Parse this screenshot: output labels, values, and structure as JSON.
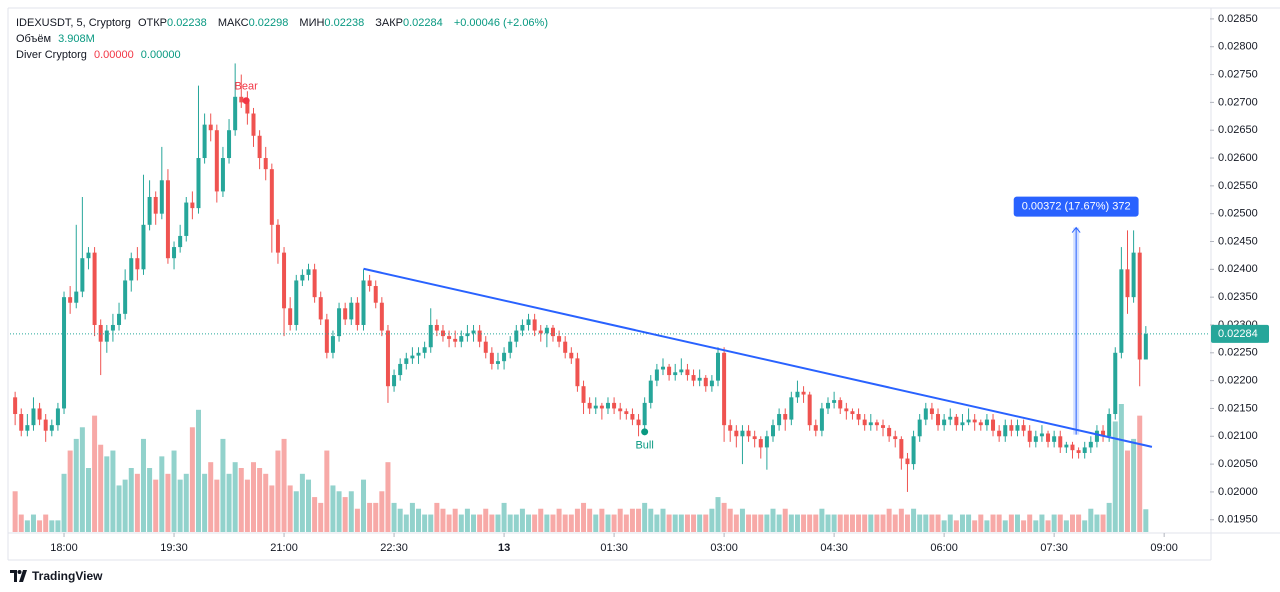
{
  "chart_data": {
    "type": "candlestick",
    "header": {
      "symbol": "IDEXUSDT, 5, Cryptorg",
      "items": [
        {
          "label": "ОТКР",
          "value": "0.02238"
        },
        {
          "label": "МАКС",
          "value": "0.02298"
        },
        {
          "label": "МИН",
          "value": "0.02238"
        },
        {
          "label": "ЗАКР",
          "value": "0.02284"
        }
      ],
      "change": "+0.00046 (+2.06%)",
      "volume_title": "Объём",
      "volume_value": "3.908M",
      "indicator": "Diver Cryptorg",
      "indicator_values": [
        "0.00000",
        "0.00000"
      ]
    },
    "up_color": "#26a69a",
    "down_color": "#ef5350",
    "series": [
      {
        "open": [
          0.0217,
          0.0214,
          0.0211,
          0.0212,
          0.0215,
          0.0213,
          0.0211,
          0.0212,
          0.0215,
          0.0235,
          0.0234,
          0.0236,
          0.0242,
          0.0243,
          0.023,
          0.0227,
          0.0229,
          0.023,
          0.0232,
          0.0238,
          0.0242,
          0.024,
          0.0248,
          0.0253,
          0.025,
          0.0256,
          0.0242,
          0.0244,
          0.0246,
          0.0252,
          0.0251,
          0.026,
          0.0266,
          0.0265,
          0.0254,
          0.026,
          0.0265,
          0.0271,
          0.027,
          0.0268,
          0.0264,
          0.026,
          0.0258,
          0.0248,
          0.0243,
          0.0233,
          0.023,
          0.0238,
          0.0239,
          0.024,
          0.0235,
          0.0231,
          0.0225,
          0.0228,
          0.0233,
          0.0231,
          0.0234,
          0.023,
          0.0238,
          0.0237,
          0.0234,
          0.0229,
          0.0219,
          0.0221,
          0.0223,
          0.0224,
          0.02245,
          0.0225,
          0.0226,
          0.023,
          0.0229,
          0.0228,
          0.02275,
          0.0227,
          0.0228,
          0.02285,
          0.0229,
          0.0227,
          0.0225,
          0.0223,
          0.02235,
          0.0225,
          0.0227,
          0.0229,
          0.023,
          0.0231,
          0.0229,
          0.02285,
          0.02295,
          0.0228,
          0.0227,
          0.0225,
          0.0224,
          0.0219,
          0.0216,
          0.0215,
          0.02155,
          0.0215,
          0.0216,
          0.0215,
          0.02145,
          0.0214,
          0.0213,
          0.0212,
          0.0216,
          0.022,
          0.0222,
          0.02225,
          0.0221,
          0.02215,
          0.0222,
          0.0221,
          0.022,
          0.02205,
          0.0219,
          0.022,
          0.0225,
          0.0212,
          0.0211,
          0.021,
          0.0211,
          0.021,
          0.02095,
          0.0208,
          0.021,
          0.0212,
          0.0214,
          0.0213,
          0.0217,
          0.0218,
          0.02175,
          0.0212,
          0.0211,
          0.0215,
          0.0216,
          0.02165,
          0.0215,
          0.02145,
          0.0214,
          0.0213,
          0.0212,
          0.02125,
          0.0212,
          0.02115,
          0.021,
          0.02095,
          0.0206,
          0.0205,
          0.021,
          0.0213,
          0.0215,
          0.0214,
          0.0212,
          0.0213,
          0.02135,
          0.0212,
          0.02125,
          0.0213,
          0.02125,
          0.0212,
          0.0213,
          0.0211,
          0.021,
          0.0212,
          0.0211,
          0.0212,
          0.0211,
          0.0209,
          0.021,
          0.02105,
          0.0209,
          0.021,
          0.0208,
          0.02085,
          0.02075,
          0.0207,
          0.0208,
          0.0209,
          0.0211,
          0.021,
          0.0214,
          0.0225,
          0.024,
          0.0235,
          0.0243,
          0.02238
        ],
        "high": [
          0.0218,
          0.0215,
          0.0214,
          0.0217,
          0.0216,
          0.0214,
          0.0213,
          0.0216,
          0.0236,
          0.0237,
          0.0248,
          0.0253,
          0.0244,
          0.0244,
          0.0231,
          0.023,
          0.0232,
          0.0234,
          0.024,
          0.0243,
          0.0244,
          0.0257,
          0.0256,
          0.0254,
          0.0262,
          0.0258,
          0.0245,
          0.0248,
          0.0253,
          0.0254,
          0.0273,
          0.0268,
          0.0268,
          0.0266,
          0.0262,
          0.0267,
          0.0277,
          0.0275,
          0.0272,
          0.0269,
          0.0265,
          0.0262,
          0.0259,
          0.0249,
          0.0244,
          0.0235,
          0.0239,
          0.024,
          0.0241,
          0.0241,
          0.0236,
          0.0232,
          0.0229,
          0.0234,
          0.0234,
          0.0235,
          0.0235,
          0.024,
          0.0239,
          0.0238,
          0.0235,
          0.023,
          0.0222,
          0.0224,
          0.0225,
          0.0226,
          0.0226,
          0.0227,
          0.0233,
          0.0231,
          0.023,
          0.0229,
          0.0229,
          0.0229,
          0.023,
          0.023,
          0.023,
          0.0228,
          0.0226,
          0.0225,
          0.0226,
          0.0228,
          0.023,
          0.0231,
          0.0232,
          0.0232,
          0.023,
          0.023,
          0.023,
          0.0229,
          0.0228,
          0.0226,
          0.0225,
          0.022,
          0.0217,
          0.0217,
          0.0216,
          0.0217,
          0.0217,
          0.0216,
          0.0215,
          0.0215,
          0.0214,
          0.0217,
          0.0221,
          0.0223,
          0.0224,
          0.0223,
          0.0223,
          0.0224,
          0.0223,
          0.0222,
          0.0222,
          0.0221,
          0.0221,
          0.0226,
          0.0226,
          0.0213,
          0.0212,
          0.0212,
          0.0212,
          0.0211,
          0.021,
          0.0211,
          0.0213,
          0.0215,
          0.0215,
          0.0218,
          0.022,
          0.0219,
          0.0218,
          0.0213,
          0.0216,
          0.0217,
          0.0218,
          0.0217,
          0.0216,
          0.0215,
          0.0215,
          0.0214,
          0.0214,
          0.0213,
          0.0213,
          0.0212,
          0.0211,
          0.021,
          0.0207,
          0.0211,
          0.0214,
          0.0216,
          0.0216,
          0.0215,
          0.0214,
          0.0215,
          0.0214,
          0.0214,
          0.0215,
          0.0214,
          0.0213,
          0.0214,
          0.0214,
          0.0212,
          0.0213,
          0.0213,
          0.0213,
          0.0213,
          0.0212,
          0.0211,
          0.0212,
          0.0211,
          0.0211,
          0.0211,
          0.0209,
          0.0209,
          0.0208,
          0.0209,
          0.021,
          0.0212,
          0.0212,
          0.0215,
          0.0226,
          0.0244,
          0.0247,
          0.0247,
          0.0244,
          0.02298
        ],
        "low": [
          0.0212,
          0.021,
          0.021,
          0.0211,
          0.0212,
          0.0209,
          0.021,
          0.0211,
          0.0214,
          0.0232,
          0.0233,
          0.0235,
          0.024,
          0.0228,
          0.0221,
          0.0225,
          0.0227,
          0.0229,
          0.0231,
          0.0236,
          0.0238,
          0.0239,
          0.0247,
          0.0248,
          0.0249,
          0.0241,
          0.024,
          0.0243,
          0.0245,
          0.0249,
          0.025,
          0.0259,
          0.0263,
          0.0252,
          0.0253,
          0.0259,
          0.0264,
          0.0269,
          0.0266,
          0.0262,
          0.0258,
          0.0256,
          0.0243,
          0.0241,
          0.0228,
          0.0229,
          0.0229,
          0.0237,
          0.0238,
          0.0234,
          0.023,
          0.0224,
          0.0224,
          0.0227,
          0.023,
          0.023,
          0.0229,
          0.0229,
          0.0236,
          0.0233,
          0.0228,
          0.0216,
          0.0218,
          0.022,
          0.0222,
          0.0223,
          0.0223,
          0.0224,
          0.0225,
          0.0228,
          0.0227,
          0.0226,
          0.0226,
          0.0226,
          0.0227,
          0.0227,
          0.0226,
          0.0224,
          0.0222,
          0.0222,
          0.0222,
          0.0224,
          0.0226,
          0.0228,
          0.0229,
          0.0228,
          0.0227,
          0.0226,
          0.0227,
          0.0226,
          0.0224,
          0.0223,
          0.0218,
          0.0214,
          0.0214,
          0.0214,
          0.0213,
          0.0214,
          0.0214,
          0.0213,
          0.0213,
          0.0212,
          0.021,
          0.0211,
          0.0215,
          0.0219,
          0.0221,
          0.022,
          0.022,
          0.0221,
          0.022,
          0.0219,
          0.0219,
          0.0218,
          0.0218,
          0.0219,
          0.0209,
          0.0209,
          0.0208,
          0.0205,
          0.0209,
          0.0208,
          0.0206,
          0.0204,
          0.0209,
          0.0211,
          0.0211,
          0.0212,
          0.0216,
          0.0216,
          0.0211,
          0.021,
          0.021,
          0.0214,
          0.0215,
          0.0214,
          0.0213,
          0.0213,
          0.0212,
          0.0211,
          0.0211,
          0.0211,
          0.021,
          0.0209,
          0.0208,
          0.0204,
          0.02,
          0.0204,
          0.0209,
          0.0212,
          0.0213,
          0.0211,
          0.0211,
          0.0212,
          0.0211,
          0.0211,
          0.0212,
          0.0211,
          0.0211,
          0.0211,
          0.021,
          0.0209,
          0.0209,
          0.021,
          0.021,
          0.021,
          0.0208,
          0.0208,
          0.0209,
          0.0208,
          0.0208,
          0.0207,
          0.0207,
          0.0206,
          0.0206,
          0.0206,
          0.0207,
          0.0208,
          0.0209,
          0.0209,
          0.0213,
          0.0224,
          0.0232,
          0.0234,
          0.0219,
          0.02238
        ],
        "close": [
          0.0214,
          0.0211,
          0.0212,
          0.0215,
          0.0213,
          0.0211,
          0.0212,
          0.0215,
          0.0235,
          0.0234,
          0.0236,
          0.0242,
          0.0243,
          0.023,
          0.0227,
          0.0229,
          0.023,
          0.0232,
          0.0238,
          0.0242,
          0.024,
          0.0248,
          0.0253,
          0.025,
          0.0256,
          0.0242,
          0.0244,
          0.0246,
          0.0252,
          0.0251,
          0.026,
          0.0266,
          0.0265,
          0.0254,
          0.026,
          0.0265,
          0.0271,
          0.027,
          0.0268,
          0.0264,
          0.026,
          0.0258,
          0.0248,
          0.0243,
          0.0233,
          0.023,
          0.0238,
          0.0239,
          0.024,
          0.0235,
          0.0231,
          0.0225,
          0.0228,
          0.0233,
          0.0231,
          0.0234,
          0.023,
          0.0238,
          0.0237,
          0.0234,
          0.0229,
          0.0219,
          0.0221,
          0.0223,
          0.0224,
          0.02245,
          0.0225,
          0.0226,
          0.023,
          0.0229,
          0.0228,
          0.02275,
          0.0227,
          0.0228,
          0.02285,
          0.0229,
          0.0227,
          0.0225,
          0.0223,
          0.02235,
          0.0225,
          0.0227,
          0.0229,
          0.023,
          0.0231,
          0.0229,
          0.02285,
          0.02295,
          0.0228,
          0.0227,
          0.0225,
          0.0224,
          0.0219,
          0.0216,
          0.0215,
          0.02155,
          0.0215,
          0.0216,
          0.0215,
          0.02145,
          0.0214,
          0.0213,
          0.0212,
          0.0216,
          0.022,
          0.0222,
          0.02225,
          0.0221,
          0.02215,
          0.0222,
          0.0221,
          0.022,
          0.02205,
          0.0219,
          0.022,
          0.0225,
          0.0212,
          0.0211,
          0.021,
          0.0211,
          0.021,
          0.02095,
          0.0208,
          0.021,
          0.0212,
          0.0214,
          0.0213,
          0.0217,
          0.0218,
          0.02175,
          0.0212,
          0.0211,
          0.0215,
          0.0216,
          0.02165,
          0.0215,
          0.02145,
          0.0214,
          0.0213,
          0.0212,
          0.02125,
          0.0212,
          0.02115,
          0.021,
          0.02095,
          0.0206,
          0.0205,
          0.021,
          0.0213,
          0.0215,
          0.0214,
          0.0212,
          0.0213,
          0.02135,
          0.0212,
          0.02125,
          0.0213,
          0.02125,
          0.0212,
          0.0213,
          0.0211,
          0.021,
          0.0212,
          0.0211,
          0.0212,
          0.0211,
          0.0209,
          0.021,
          0.02105,
          0.0209,
          0.021,
          0.0208,
          0.02085,
          0.02075,
          0.0207,
          0.0208,
          0.0209,
          0.0211,
          0.021,
          0.0214,
          0.0225,
          0.024,
          0.0235,
          0.0243,
          0.02238,
          0.02284
        ],
        "volume": [
          7,
          3,
          2,
          3,
          2,
          3,
          2,
          2,
          10,
          14,
          16,
          18,
          11,
          20,
          15,
          13,
          14,
          8,
          9,
          11,
          10,
          16,
          11,
          9,
          13,
          10,
          14,
          9,
          10,
          18,
          21,
          10,
          12,
          9,
          16,
          10,
          12,
          11,
          9,
          12,
          11,
          10,
          8,
          14,
          16,
          8,
          7,
          10,
          9,
          6,
          5,
          14,
          8,
          7,
          6,
          7,
          4,
          9,
          5,
          5,
          7,
          12,
          5,
          4,
          3,
          5,
          4,
          3,
          3,
          5,
          4,
          3,
          4,
          3,
          4,
          3,
          3,
          4,
          3,
          3,
          5,
          3,
          3,
          4,
          3,
          3,
          4,
          3,
          3,
          4,
          3,
          3,
          4,
          5,
          4,
          3,
          4,
          3,
          3,
          4,
          3,
          4,
          4,
          5,
          4,
          3,
          4,
          3,
          3,
          3,
          3,
          3,
          3,
          3,
          4,
          6,
          5,
          4,
          3,
          4,
          3,
          3,
          3,
          3,
          4,
          3,
          4,
          3,
          3,
          3,
          3,
          3,
          4,
          3,
          3,
          3,
          3,
          3,
          3,
          3,
          3,
          3,
          3,
          4,
          3,
          4,
          3,
          4,
          3,
          3,
          3,
          3,
          2,
          3,
          2,
          3,
          3,
          2,
          3,
          2,
          3,
          3,
          2,
          3,
          3,
          2,
          3,
          2,
          3,
          2,
          3,
          3,
          2,
          3,
          3,
          2,
          4,
          3,
          3,
          5,
          19,
          22,
          14,
          16,
          20,
          3.908
        ]
      }
    ],
    "xlim": [
      -0.84,
      195.5
    ],
    "xticks": [
      {
        "value": 8,
        "label": "18:00"
      },
      {
        "value": 26,
        "label": "19:30"
      },
      {
        "value": 44,
        "label": "21:00"
      },
      {
        "value": 62,
        "label": "22:30"
      },
      {
        "value": 80,
        "label": "13"
      },
      {
        "value": 98,
        "label": "01:30"
      },
      {
        "value": 116,
        "label": "03:00"
      },
      {
        "value": 134,
        "label": "04:30"
      },
      {
        "value": 152,
        "label": "06:00"
      },
      {
        "value": 170,
        "label": "07:30"
      },
      {
        "value": 188,
        "label": "09:00"
      }
    ],
    "ylim": [
      0.01928,
      0.02866
    ],
    "yticks": [
      {
        "value": 0.0285,
        "label": "0.02850"
      },
      {
        "value": 0.028,
        "label": "0.02800"
      },
      {
        "value": 0.0275,
        "label": "0.02750"
      },
      {
        "value": 0.027,
        "label": "0.02700"
      },
      {
        "value": 0.0265,
        "label": "0.02650"
      },
      {
        "value": 0.026,
        "label": "0.02600"
      },
      {
        "value": 0.0255,
        "label": "0.02550"
      },
      {
        "value": 0.025,
        "label": "0.02500"
      },
      {
        "value": 0.0245,
        "label": "0.02450"
      },
      {
        "value": 0.024,
        "label": "0.02400"
      },
      {
        "value": 0.0235,
        "label": "0.02350"
      },
      {
        "value": 0.023,
        "label": "0.02300"
      },
      {
        "value": 0.0225,
        "label": "0.02250"
      },
      {
        "value": 0.022,
        "label": "0.02200"
      },
      {
        "value": 0.0215,
        "label": "0.02150"
      },
      {
        "value": 0.021,
        "label": "0.02100"
      },
      {
        "value": 0.0205,
        "label": "0.02050"
      },
      {
        "value": 0.02,
        "label": "0.02000"
      },
      {
        "value": 0.0195,
        "label": "0.01950"
      }
    ],
    "grid": false,
    "trendline": {
      "x": [
        57,
        186
      ],
      "y": [
        0.02401,
        0.02081
      ],
      "color": "#2962ff"
    },
    "measure": {
      "x": 173.6,
      "y": [
        0.02103,
        0.02475
      ],
      "label": "0.00372 (17.67%) 372",
      "color": "#2962ff"
    },
    "markers": [
      {
        "label": "Bear",
        "x": 37.8,
        "y": 0.02703,
        "color": "#f23645",
        "placement": "above"
      },
      {
        "label": "Bull",
        "x": 103,
        "y": 0.02108,
        "color": "#089981",
        "placement": "below"
      }
    ]
  },
  "footer": {
    "brand": "TradingView"
  }
}
